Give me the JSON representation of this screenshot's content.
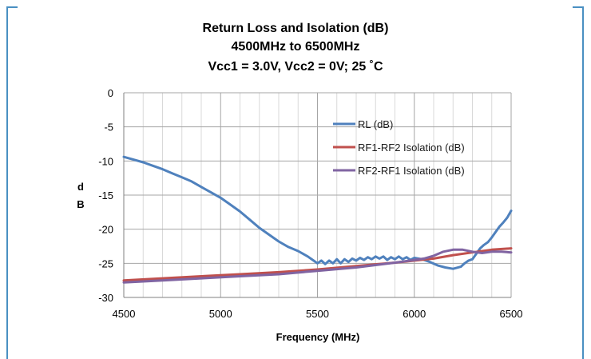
{
  "chart_data": {
    "type": "line",
    "title_lines": [
      "Return Loss and Isolation (dB)",
      "4500MHz to 6500MHz",
      "Vcc1 = 3.0V, Vcc2 = 0V; 25 ˚C"
    ],
    "xlabel": "Frequency (MHz)",
    "ylabel_lines": [
      "d",
      "B"
    ],
    "xlim": [
      4500,
      6500
    ],
    "ylim": [
      -30,
      0
    ],
    "x_ticks": [
      4500,
      5000,
      5500,
      6000,
      6500
    ],
    "y_ticks": [
      0,
      -5,
      -10,
      -15,
      -20,
      -25,
      -30
    ],
    "x_minor_step": 100,
    "grid": true,
    "legend_position": "upper-right-inside",
    "series": [
      {
        "name": "RL (dB)",
        "color": "#4f81bd",
        "points": [
          [
            4500,
            -9.4
          ],
          [
            4550,
            -9.8
          ],
          [
            4600,
            -10.2
          ],
          [
            4650,
            -10.7
          ],
          [
            4700,
            -11.2
          ],
          [
            4750,
            -11.8
          ],
          [
            4800,
            -12.4
          ],
          [
            4850,
            -13.0
          ],
          [
            4900,
            -13.8
          ],
          [
            4950,
            -14.6
          ],
          [
            5000,
            -15.4
          ],
          [
            5050,
            -16.4
          ],
          [
            5100,
            -17.4
          ],
          [
            5150,
            -18.6
          ],
          [
            5200,
            -19.8
          ],
          [
            5250,
            -20.8
          ],
          [
            5300,
            -21.8
          ],
          [
            5350,
            -22.6
          ],
          [
            5400,
            -23.2
          ],
          [
            5450,
            -24.0
          ],
          [
            5480,
            -24.6
          ],
          [
            5500,
            -25.0
          ],
          [
            5520,
            -24.6
          ],
          [
            5540,
            -25.1
          ],
          [
            5560,
            -24.6
          ],
          [
            5580,
            -25.0
          ],
          [
            5600,
            -24.4
          ],
          [
            5620,
            -25.0
          ],
          [
            5640,
            -24.4
          ],
          [
            5660,
            -24.8
          ],
          [
            5680,
            -24.3
          ],
          [
            5700,
            -24.6
          ],
          [
            5720,
            -24.2
          ],
          [
            5740,
            -24.5
          ],
          [
            5760,
            -24.1
          ],
          [
            5780,
            -24.4
          ],
          [
            5800,
            -24.0
          ],
          [
            5820,
            -24.3
          ],
          [
            5840,
            -24.0
          ],
          [
            5860,
            -24.5
          ],
          [
            5880,
            -24.1
          ],
          [
            5900,
            -24.4
          ],
          [
            5920,
            -24.0
          ],
          [
            5940,
            -24.4
          ],
          [
            5960,
            -24.1
          ],
          [
            5980,
            -24.5
          ],
          [
            6000,
            -24.2
          ],
          [
            6040,
            -24.4
          ],
          [
            6080,
            -24.8
          ],
          [
            6120,
            -25.3
          ],
          [
            6160,
            -25.6
          ],
          [
            6200,
            -25.8
          ],
          [
            6240,
            -25.5
          ],
          [
            6260,
            -25.0
          ],
          [
            6280,
            -24.6
          ],
          [
            6300,
            -24.4
          ],
          [
            6320,
            -23.6
          ],
          [
            6340,
            -22.8
          ],
          [
            6360,
            -22.3
          ],
          [
            6380,
            -21.9
          ],
          [
            6400,
            -21.2
          ],
          [
            6420,
            -20.4
          ],
          [
            6440,
            -19.6
          ],
          [
            6460,
            -19.0
          ],
          [
            6480,
            -18.3
          ],
          [
            6500,
            -17.3
          ]
        ]
      },
      {
        "name": "RF1-RF2 Isolation (dB)",
        "color": "#c0504d",
        "points": [
          [
            4500,
            -27.5
          ],
          [
            4700,
            -27.2
          ],
          [
            4900,
            -26.9
          ],
          [
            5100,
            -26.6
          ],
          [
            5300,
            -26.3
          ],
          [
            5500,
            -25.9
          ],
          [
            5700,
            -25.4
          ],
          [
            5900,
            -24.9
          ],
          [
            6000,
            -24.6
          ],
          [
            6100,
            -24.3
          ],
          [
            6200,
            -23.8
          ],
          [
            6300,
            -23.4
          ],
          [
            6400,
            -23.0
          ],
          [
            6500,
            -22.8
          ]
        ]
      },
      {
        "name": "RF2-RF1 Isolation (dB)",
        "color": "#8064a2",
        "points": [
          [
            4500,
            -27.8
          ],
          [
            4700,
            -27.5
          ],
          [
            4900,
            -27.2
          ],
          [
            5100,
            -26.9
          ],
          [
            5300,
            -26.6
          ],
          [
            5500,
            -26.1
          ],
          [
            5700,
            -25.6
          ],
          [
            5900,
            -24.9
          ],
          [
            6000,
            -24.5
          ],
          [
            6050,
            -24.3
          ],
          [
            6100,
            -23.9
          ],
          [
            6150,
            -23.3
          ],
          [
            6200,
            -23.0
          ],
          [
            6250,
            -23.0
          ],
          [
            6300,
            -23.3
          ],
          [
            6350,
            -23.5
          ],
          [
            6400,
            -23.3
          ],
          [
            6450,
            -23.3
          ],
          [
            6500,
            -23.4
          ]
        ]
      }
    ]
  }
}
